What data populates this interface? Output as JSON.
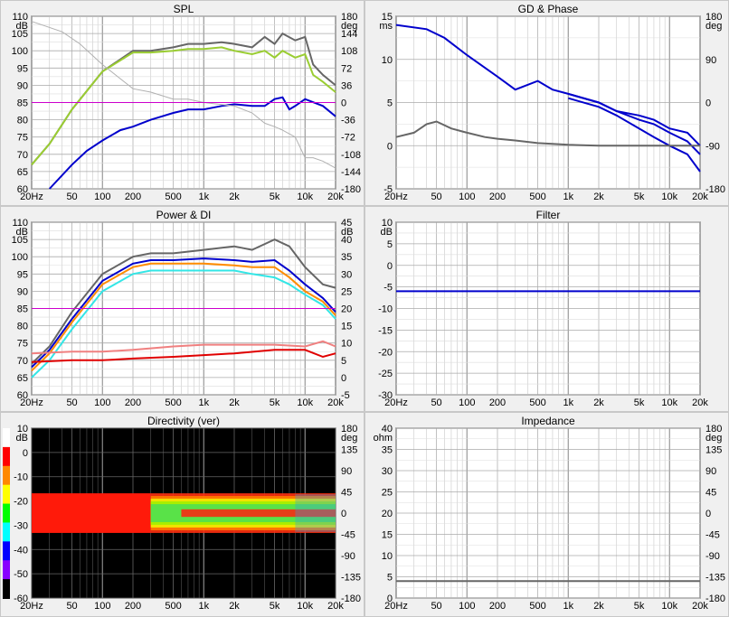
{
  "x_ticks": [
    "20Hz",
    "50",
    "100",
    "200",
    "500",
    "1k",
    "2k",
    "5k",
    "10k",
    "20k"
  ],
  "panels": {
    "spl": {
      "title": "SPL",
      "left_unit": "dB",
      "right_unit": "deg",
      "left_ticks": [
        "110",
        "105",
        "100",
        "95",
        "90",
        "85",
        "80",
        "75",
        "70",
        "65",
        "60"
      ],
      "right_ticks": [
        "180",
        "144",
        "108",
        "72",
        "36",
        "0",
        "-36",
        "-72",
        "-108",
        "-144",
        "-180"
      ]
    },
    "gd": {
      "title": "GD & Phase",
      "left_unit": "ms",
      "right_unit": "deg",
      "left_ticks": [
        "15",
        "10",
        "5",
        "0",
        "-5"
      ],
      "right_ticks": [
        "180",
        "90",
        "0",
        "-90",
        "-180"
      ]
    },
    "power": {
      "title": "Power & DI",
      "left_unit": "dB",
      "right_unit": "dB",
      "left_ticks": [
        "110",
        "105",
        "100",
        "95",
        "90",
        "85",
        "80",
        "75",
        "70",
        "65",
        "60"
      ],
      "right_ticks": [
        "45",
        "40",
        "35",
        "30",
        "25",
        "20",
        "15",
        "10",
        "5",
        "0",
        "-5"
      ]
    },
    "filter": {
      "title": "Filter",
      "left_unit": "dB",
      "left_ticks": [
        "10",
        "5",
        "0",
        "-5",
        "-10",
        "-15",
        "-20",
        "-25",
        "-30"
      ]
    },
    "directivity": {
      "title": "Directivity (ver)",
      "left_unit": "dB",
      "right_unit": "deg",
      "left_ticks": [
        "10",
        "0",
        "-10",
        "-20",
        "-30",
        "-40",
        "-50",
        "-60"
      ],
      "right_ticks": [
        "180",
        "135",
        "90",
        "45",
        "0",
        "-45",
        "-90",
        "-135",
        "-180"
      ]
    },
    "impedance": {
      "title": "Impedance",
      "left_unit": "ohm",
      "right_unit": "deg",
      "left_ticks": [
        "40",
        "35",
        "30",
        "25",
        "20",
        "15",
        "10",
        "5",
        "0"
      ],
      "right_ticks": [
        "180",
        "135",
        "90",
        "45",
        "0",
        "-45",
        "-90",
        "-135",
        "-180"
      ]
    }
  },
  "colors": {
    "green_spl": "#9acd32",
    "grey_curve": "#666666",
    "light_grey": "#b0b0b0",
    "blue": "#0000cc",
    "magenta_ref": "#cc00cc",
    "orange": "#ff8c00",
    "cyan": "#33e6e6",
    "red": "#e00000",
    "salmon": "#f08080"
  },
  "chart_data": [
    {
      "type": "line",
      "title": "SPL",
      "xscale": "log",
      "xlim": [
        20,
        20000
      ],
      "ylim": [
        60,
        110
      ],
      "y2lim": [
        -180,
        180
      ],
      "ylabel": "dB",
      "y2label": "deg",
      "series": [
        {
          "color": "#666666",
          "x": [
            20,
            30,
            50,
            100,
            200,
            300,
            500,
            700,
            1000,
            1500,
            2000,
            3000,
            4000,
            5000,
            6000,
            8000,
            10000,
            12000,
            15000,
            20000
          ],
          "y": [
            67,
            73,
            83,
            94,
            100,
            100,
            101,
            102,
            102,
            102.5,
            102,
            101,
            104,
            102,
            105,
            103,
            104,
            96,
            93,
            90
          ]
        },
        {
          "color": "#9acd32",
          "x": [
            20,
            30,
            50,
            100,
            200,
            300,
            500,
            700,
            1000,
            1500,
            2000,
            3000,
            4000,
            5000,
            6000,
            8000,
            10000,
            12000,
            15000,
            20000
          ],
          "y": [
            67,
            73,
            83,
            94,
            99.5,
            99.5,
            100,
            100.5,
            100.5,
            101,
            100,
            99,
            100,
            98,
            100,
            98,
            99,
            93,
            91,
            88
          ]
        },
        {
          "color": "#0000cc",
          "x": [
            30,
            50,
            70,
            100,
            150,
            200,
            300,
            500,
            700,
            1000,
            1500,
            2000,
            3000,
            4000,
            5000,
            6000,
            7000,
            8000,
            10000,
            15000,
            20000
          ],
          "y": [
            60,
            67,
            71,
            74,
            77,
            78,
            80,
            82,
            83,
            83,
            84,
            84.5,
            84,
            84,
            86,
            86.5,
            83,
            84,
            86,
            84,
            81
          ]
        },
        {
          "color": "#b0b0b0",
          "x": [
            20,
            40,
            60,
            100,
            200,
            300,
            500,
            700,
            1000,
            2000,
            3000,
            4000,
            5000,
            6000,
            8000,
            10000,
            12000,
            15000,
            20000
          ],
          "y": [
            108.5,
            105.5,
            102,
            96,
            89,
            88,
            86,
            86,
            85,
            84,
            82,
            79,
            78,
            77,
            75,
            69,
            69,
            68,
            66
          ]
        },
        {
          "color": "#cc00cc",
          "x": [
            20,
            20000
          ],
          "y": [
            85,
            85
          ]
        }
      ]
    },
    {
      "type": "line",
      "title": "GD & Phase",
      "xscale": "log",
      "xlim": [
        20,
        20000
      ],
      "ylim": [
        -5,
        15
      ],
      "y2lim": [
        -180,
        180
      ],
      "ylabel": "ms",
      "y2label": "deg",
      "series": [
        {
          "color": "#0000cc",
          "x": [
            20,
            40,
            60,
            100,
            200,
            300,
            500,
            700,
            1000,
            2000,
            3000,
            5000,
            7000,
            10000,
            15000,
            20000
          ],
          "y": [
            14,
            13.5,
            12.5,
            10.5,
            8,
            6.5,
            7.5,
            6.5,
            6,
            5,
            4,
            3,
            2.5,
            1.5,
            0.5,
            -1
          ]
        },
        {
          "color": "#0000cc",
          "x": [
            1000,
            2000,
            3000,
            5000,
            7000,
            10000,
            15000,
            20000
          ],
          "y": [
            5.5,
            4.5,
            3.5,
            2,
            1,
            0,
            -1,
            -3
          ]
        },
        {
          "color": "#0000cc",
          "x": [
            1000,
            2000,
            3000,
            5000,
            7000,
            10000,
            15000,
            20000
          ],
          "y": [
            6,
            5,
            4,
            3.5,
            3,
            2,
            1.5,
            0
          ]
        },
        {
          "color": "#666666",
          "x": [
            20,
            30,
            40,
            50,
            70,
            100,
            150,
            200,
            300,
            500,
            700,
            1000,
            2000,
            5000,
            10000,
            20000
          ],
          "y": [
            1,
            1.5,
            2.5,
            2.8,
            2,
            1.5,
            1,
            0.8,
            0.6,
            0.3,
            0.2,
            0.1,
            0,
            0,
            0,
            0
          ]
        }
      ]
    },
    {
      "type": "line",
      "title": "Power & DI",
      "xscale": "log",
      "xlim": [
        20,
        20000
      ],
      "ylim": [
        60,
        110
      ],
      "y2lim": [
        -5,
        45
      ],
      "ylabel": "dB",
      "y2label": "dB",
      "series": [
        {
          "color": "#666666",
          "x": [
            20,
            30,
            50,
            100,
            200,
            300,
            500,
            1000,
            2000,
            3000,
            5000,
            7000,
            10000,
            15000,
            20000
          ],
          "y": [
            69,
            74,
            84,
            95,
            100,
            101,
            101,
            102,
            103,
            102,
            105,
            103,
            97,
            92,
            91
          ]
        },
        {
          "color": "#0000cc",
          "x": [
            20,
            30,
            50,
            100,
            200,
            300,
            500,
            1000,
            2000,
            3000,
            5000,
            7000,
            10000,
            15000,
            20000
          ],
          "y": [
            68,
            73,
            82,
            93,
            98,
            99,
            99,
            99.5,
            99,
            98.5,
            99,
            96,
            92,
            88,
            84
          ]
        },
        {
          "color": "#ff8c00",
          "x": [
            20,
            30,
            50,
            100,
            200,
            300,
            500,
            1000,
            2000,
            3000,
            5000,
            7000,
            10000,
            15000,
            20000
          ],
          "y": [
            67,
            72,
            81,
            92,
            97,
            98,
            98,
            98,
            97.5,
            97,
            97,
            94,
            90,
            87,
            83
          ]
        },
        {
          "color": "#33e6e6",
          "x": [
            20,
            30,
            50,
            100,
            200,
            300,
            500,
            1000,
            2000,
            3000,
            5000,
            7000,
            10000,
            15000,
            20000
          ],
          "y": [
            65,
            70,
            79,
            90,
            95,
            96,
            96,
            96,
            96,
            95,
            94,
            92,
            89,
            86,
            82
          ]
        },
        {
          "color": "#cc00cc",
          "x": [
            20,
            20000
          ],
          "y": [
            85,
            85
          ]
        },
        {
          "color": "#f08080",
          "x": [
            20,
            50,
            100,
            200,
            500,
            1000,
            2000,
            5000,
            10000,
            15000,
            20000
          ],
          "y": [
            7,
            7.5,
            7.5,
            8,
            9,
            9.5,
            9.5,
            9.5,
            9,
            10.5,
            9
          ]
        },
        {
          "color": "#e00000",
          "x": [
            20,
            50,
            100,
            200,
            500,
            1000,
            2000,
            5000,
            10000,
            15000,
            20000
          ],
          "y": [
            4.5,
            5,
            5,
            5.5,
            6,
            6.5,
            7,
            8,
            8,
            6,
            7
          ]
        }
      ]
    },
    {
      "type": "line",
      "title": "Filter",
      "xscale": "log",
      "xlim": [
        20,
        20000
      ],
      "ylim": [
        -30,
        10
      ],
      "ylabel": "dB",
      "series": [
        {
          "color": "#0000cc",
          "x": [
            20,
            20000
          ],
          "y": [
            -6,
            -6
          ]
        }
      ]
    },
    {
      "type": "heatmap",
      "title": "Directivity (ver)",
      "xscale": "log",
      "xlim": [
        20,
        20000
      ],
      "ylim": [
        -180,
        180
      ],
      "color_scale_db": [
        10,
        -60
      ],
      "ylabel": "deg"
    },
    {
      "type": "line",
      "title": "Impedance",
      "xscale": "log",
      "xlim": [
        20,
        20000
      ],
      "ylim": [
        0,
        40
      ],
      "y2lim": [
        -180,
        180
      ],
      "ylabel": "ohm",
      "y2label": "deg",
      "series": [
        {
          "color": "#666666",
          "x": [
            20,
            20000
          ],
          "y": [
            4,
            4
          ]
        }
      ]
    }
  ]
}
